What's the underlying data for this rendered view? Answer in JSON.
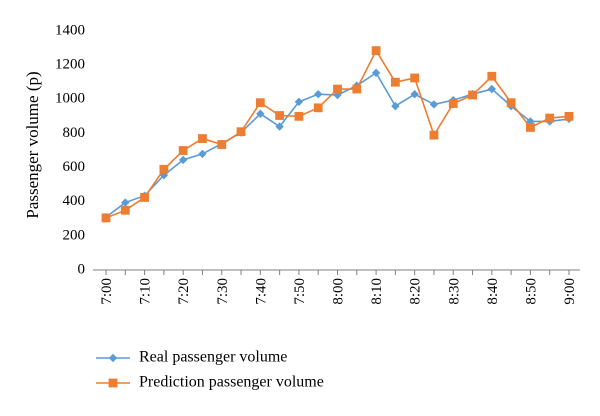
{
  "chart_data": {
    "type": "line",
    "title": "",
    "xlabel": "",
    "ylabel": "Passenger volume (p)",
    "ylim": [
      0,
      1400
    ],
    "yticks": [
      0,
      200,
      400,
      600,
      800,
      1000,
      1200,
      1400
    ],
    "grid": false,
    "legend": "bottom-left",
    "x": [
      "7:00",
      "7:05",
      "7:10",
      "7:15",
      "7:20",
      "7:25",
      "7:30",
      "7:35",
      "7:40",
      "7:45",
      "7:50",
      "7:55",
      "8:00",
      "8:05",
      "8:10",
      "8:15",
      "8:20",
      "8:25",
      "8:30",
      "8:35",
      "8:40",
      "8:45",
      "8:50",
      "8:55",
      "9:00"
    ],
    "xtick_labels": [
      "7:00",
      "7:10",
      "7:20",
      "7:30",
      "7:40",
      "7:50",
      "8:00",
      "8:10",
      "8:20",
      "8:30",
      "8:40",
      "8:50",
      "9:00"
    ],
    "series": [
      {
        "name": "Real passenger volume",
        "color": "#5b9bd5",
        "marker": "diamond",
        "values": [
          310,
          395,
          435,
          555,
          645,
          680,
          740,
          805,
          915,
          840,
          985,
          1030,
          1025,
          1080,
          1155,
          960,
          1030,
          970,
          995,
          1030,
          1060,
          960,
          870,
          870,
          885
        ]
      },
      {
        "name": "Prediction passenger volume",
        "color": "#ed7d31",
        "marker": "square",
        "values": [
          305,
          350,
          425,
          590,
          700,
          770,
          735,
          810,
          980,
          905,
          900,
          950,
          1060,
          1060,
          1285,
          1100,
          1125,
          790,
          975,
          1025,
          1135,
          980,
          835,
          890,
          900
        ]
      }
    ]
  }
}
